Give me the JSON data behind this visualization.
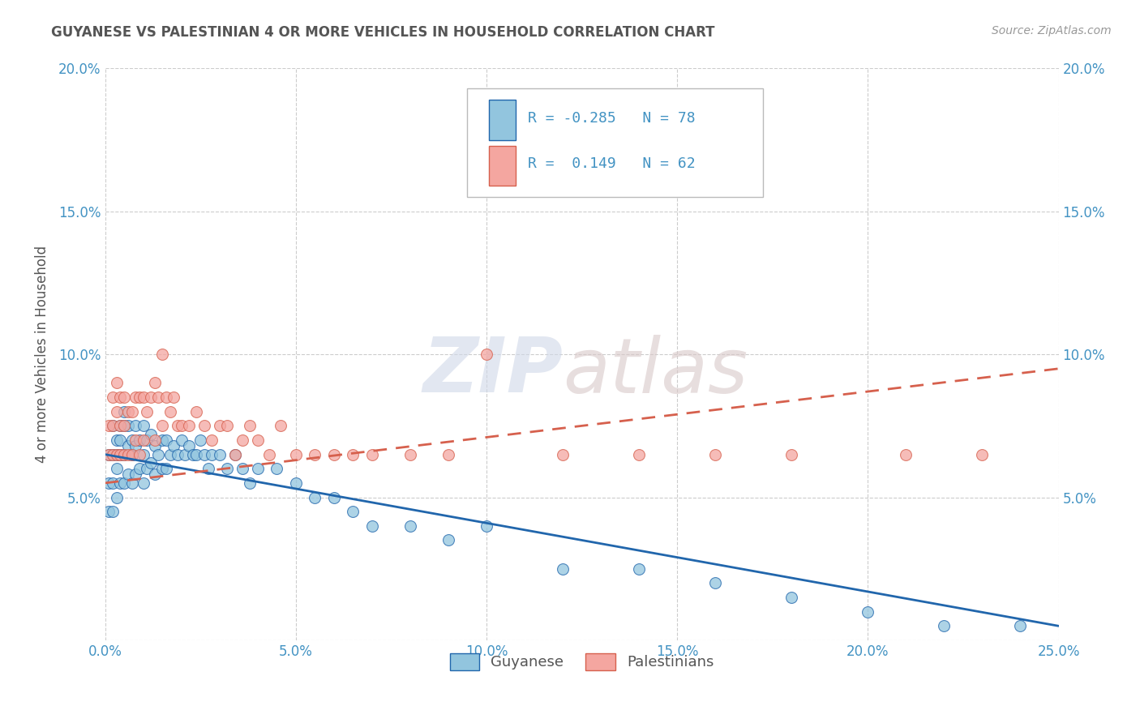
{
  "title": "GUYANESE VS PALESTINIAN 4 OR MORE VEHICLES IN HOUSEHOLD CORRELATION CHART",
  "source": "Source: ZipAtlas.com",
  "ylabel": "4 or more Vehicles in Household",
  "xlim": [
    0.0,
    0.25
  ],
  "ylim": [
    0.0,
    0.2
  ],
  "xticks": [
    0.0,
    0.05,
    0.1,
    0.15,
    0.2,
    0.25
  ],
  "yticks": [
    0.0,
    0.05,
    0.1,
    0.15,
    0.2
  ],
  "xticklabels": [
    "0.0%",
    "5.0%",
    "10.0%",
    "15.0%",
    "20.0%",
    "25.0%"
  ],
  "yticklabels": [
    "",
    "5.0%",
    "10.0%",
    "15.0%",
    "20.0%"
  ],
  "right_yticklabels": [
    "",
    "5.0%",
    "10.0%",
    "15.0%",
    "20.0%"
  ],
  "guyanese_color": "#92c5de",
  "palestinian_color": "#f4a6a0",
  "guyanese_line_color": "#2166ac",
  "palestinian_line_color": "#d6604d",
  "R_guyanese": -0.285,
  "N_guyanese": 78,
  "R_palestinian": 0.149,
  "N_palestinian": 62,
  "watermark_zip": "ZIP",
  "watermark_atlas": "atlas",
  "background_color": "#ffffff",
  "grid_color": "#cccccc",
  "title_color": "#555555",
  "axis_label_color": "#4393c3",
  "guyanese_line_x0": 0.0,
  "guyanese_line_y0": 0.065,
  "guyanese_line_x1": 0.25,
  "guyanese_line_y1": 0.005,
  "palestinian_line_x0": 0.0,
  "palestinian_line_y0": 0.055,
  "palestinian_line_x1": 0.25,
  "palestinian_line_y1": 0.095,
  "guyanese_x": [
    0.001,
    0.001,
    0.001,
    0.002,
    0.002,
    0.002,
    0.002,
    0.003,
    0.003,
    0.003,
    0.003,
    0.004,
    0.004,
    0.004,
    0.004,
    0.005,
    0.005,
    0.005,
    0.005,
    0.006,
    0.006,
    0.006,
    0.007,
    0.007,
    0.007,
    0.008,
    0.008,
    0.008,
    0.009,
    0.009,
    0.01,
    0.01,
    0.01,
    0.011,
    0.011,
    0.012,
    0.012,
    0.013,
    0.013,
    0.014,
    0.015,
    0.015,
    0.016,
    0.016,
    0.017,
    0.018,
    0.019,
    0.02,
    0.021,
    0.022,
    0.023,
    0.024,
    0.025,
    0.026,
    0.027,
    0.028,
    0.03,
    0.032,
    0.034,
    0.036,
    0.038,
    0.04,
    0.045,
    0.05,
    0.055,
    0.06,
    0.065,
    0.07,
    0.08,
    0.09,
    0.1,
    0.12,
    0.14,
    0.16,
    0.18,
    0.2,
    0.22,
    0.24
  ],
  "guyanese_y": [
    0.065,
    0.055,
    0.045,
    0.075,
    0.065,
    0.055,
    0.045,
    0.07,
    0.065,
    0.06,
    0.05,
    0.075,
    0.07,
    0.065,
    0.055,
    0.08,
    0.075,
    0.065,
    0.055,
    0.075,
    0.068,
    0.058,
    0.07,
    0.065,
    0.055,
    0.075,
    0.068,
    0.058,
    0.07,
    0.06,
    0.075,
    0.065,
    0.055,
    0.07,
    0.06,
    0.072,
    0.062,
    0.068,
    0.058,
    0.065,
    0.07,
    0.06,
    0.07,
    0.06,
    0.065,
    0.068,
    0.065,
    0.07,
    0.065,
    0.068,
    0.065,
    0.065,
    0.07,
    0.065,
    0.06,
    0.065,
    0.065,
    0.06,
    0.065,
    0.06,
    0.055,
    0.06,
    0.06,
    0.055,
    0.05,
    0.05,
    0.045,
    0.04,
    0.04,
    0.035,
    0.04,
    0.025,
    0.025,
    0.02,
    0.015,
    0.01,
    0.005,
    0.005
  ],
  "palestinian_x": [
    0.001,
    0.001,
    0.002,
    0.002,
    0.002,
    0.003,
    0.003,
    0.003,
    0.004,
    0.004,
    0.004,
    0.005,
    0.005,
    0.005,
    0.006,
    0.006,
    0.007,
    0.007,
    0.008,
    0.008,
    0.009,
    0.009,
    0.01,
    0.01,
    0.011,
    0.012,
    0.013,
    0.013,
    0.014,
    0.015,
    0.015,
    0.016,
    0.017,
    0.018,
    0.019,
    0.02,
    0.022,
    0.024,
    0.026,
    0.028,
    0.03,
    0.032,
    0.034,
    0.036,
    0.038,
    0.04,
    0.043,
    0.046,
    0.05,
    0.055,
    0.06,
    0.065,
    0.07,
    0.08,
    0.09,
    0.1,
    0.12,
    0.14,
    0.16,
    0.18,
    0.21,
    0.23
  ],
  "palestinian_y": [
    0.075,
    0.065,
    0.085,
    0.075,
    0.065,
    0.09,
    0.08,
    0.065,
    0.085,
    0.075,
    0.065,
    0.085,
    0.075,
    0.065,
    0.08,
    0.065,
    0.08,
    0.065,
    0.085,
    0.07,
    0.085,
    0.065,
    0.085,
    0.07,
    0.08,
    0.085,
    0.09,
    0.07,
    0.085,
    0.1,
    0.075,
    0.085,
    0.08,
    0.085,
    0.075,
    0.075,
    0.075,
    0.08,
    0.075,
    0.07,
    0.075,
    0.075,
    0.065,
    0.07,
    0.075,
    0.07,
    0.065,
    0.075,
    0.065,
    0.065,
    0.065,
    0.065,
    0.065,
    0.065,
    0.065,
    0.1,
    0.065,
    0.065,
    0.065,
    0.065,
    0.065,
    0.065
  ]
}
